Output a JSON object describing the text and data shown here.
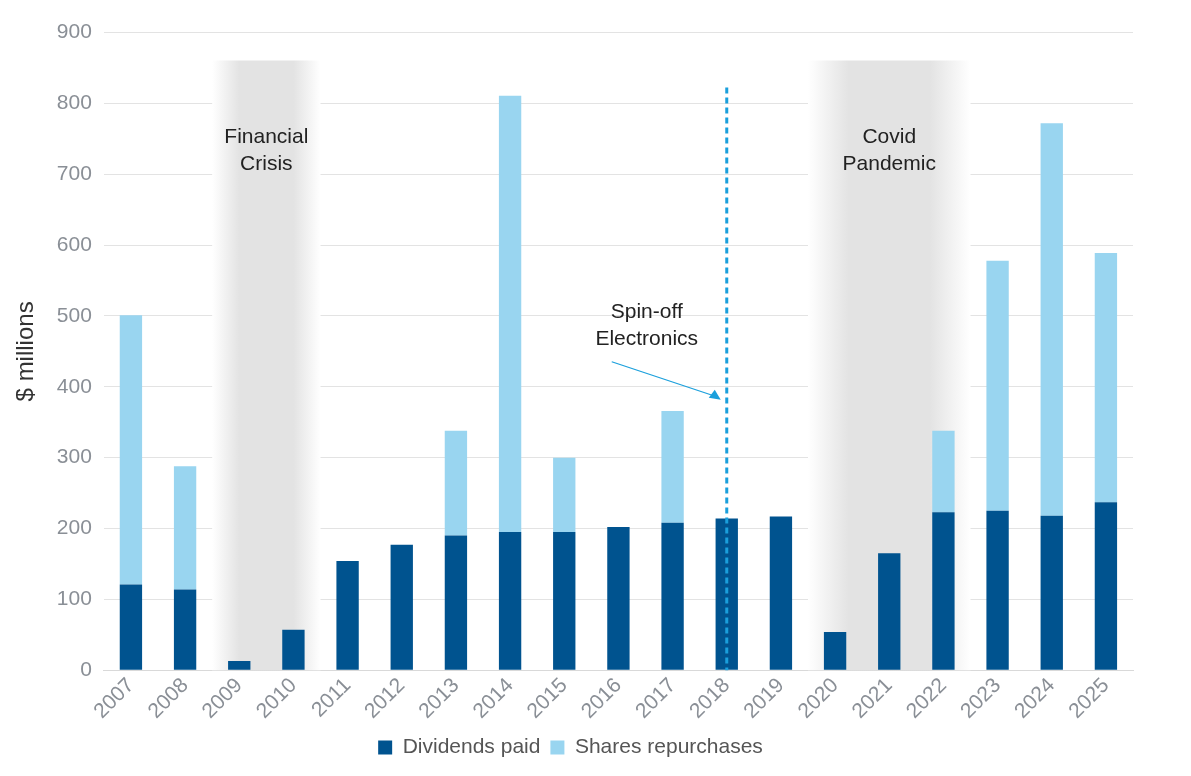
{
  "chart_data": {
    "type": "bar",
    "stacked": true,
    "ylabel": "$ millions",
    "categories": [
      "2007",
      "2008",
      "2009",
      "2010",
      "2011",
      "2012",
      "2013",
      "2014",
      "2015",
      "2016",
      "2017",
      "2018",
      "2019",
      "2020",
      "2021",
      "2022",
      "2023",
      "2024",
      "2025"
    ],
    "series": [
      {
        "name": "Dividends paid",
        "color": "#00538f",
        "values": [
          121,
          114,
          13,
          57,
          154,
          177,
          190,
          195,
          195,
          202,
          208,
          214,
          217,
          54,
          165,
          223,
          225,
          218,
          237
        ]
      },
      {
        "name": "Shares repurchases",
        "color": "#99d5f0",
        "values": [
          380,
          174,
          0,
          0,
          0,
          0,
          148,
          616,
          105,
          0,
          158,
          0,
          0,
          0,
          0,
          115,
          353,
          554,
          352
        ]
      }
    ],
    "ylim": [
      0,
      900
    ],
    "yticks": [
      0,
      100,
      200,
      300,
      400,
      500,
      600,
      700,
      800,
      900
    ],
    "grid": "y",
    "legend": "bottom",
    "bands": [
      {
        "axis": "x",
        "from": "2009",
        "to": "2010",
        "label": "Financial Crisis",
        "color": "#e3e3e3"
      },
      {
        "axis": "x",
        "from": "2020",
        "to": "2022",
        "label": "Covid Pandemic",
        "color": "#e3e3e3"
      }
    ],
    "ref_lines": [
      {
        "axis": "x",
        "value": "2018",
        "label": "Spin-off Electronics",
        "color": "#1a9fdc",
        "line_style": "dashed"
      }
    ]
  }
}
